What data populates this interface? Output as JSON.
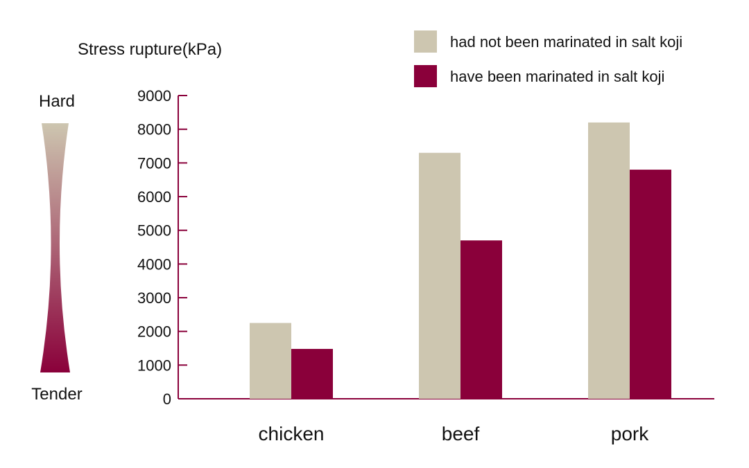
{
  "chart_data": {
    "type": "bar",
    "ylabel": "Stress rupture(kPa)",
    "categories": [
      "chicken",
      "beef",
      "pork"
    ],
    "series": [
      {
        "name": "had not been marinated in salt koji",
        "values": [
          2250,
          7300,
          8200
        ]
      },
      {
        "name": "have been marinated in salt koji",
        "values": [
          1480,
          4700,
          6800
        ]
      }
    ],
    "ylim": [
      0,
      9000
    ],
    "yticks": [
      0,
      1000,
      2000,
      3000,
      4000,
      5000,
      6000,
      7000,
      8000,
      9000
    ],
    "legend_position": "top-right",
    "grid": false
  },
  "scale_indicator": {
    "top_label": "Hard",
    "bottom_label": "Tender"
  },
  "colors": {
    "series_0": "#cdc6b0",
    "series_1": "#8a003a",
    "axis": "#8a003a",
    "text": "#111111"
  }
}
